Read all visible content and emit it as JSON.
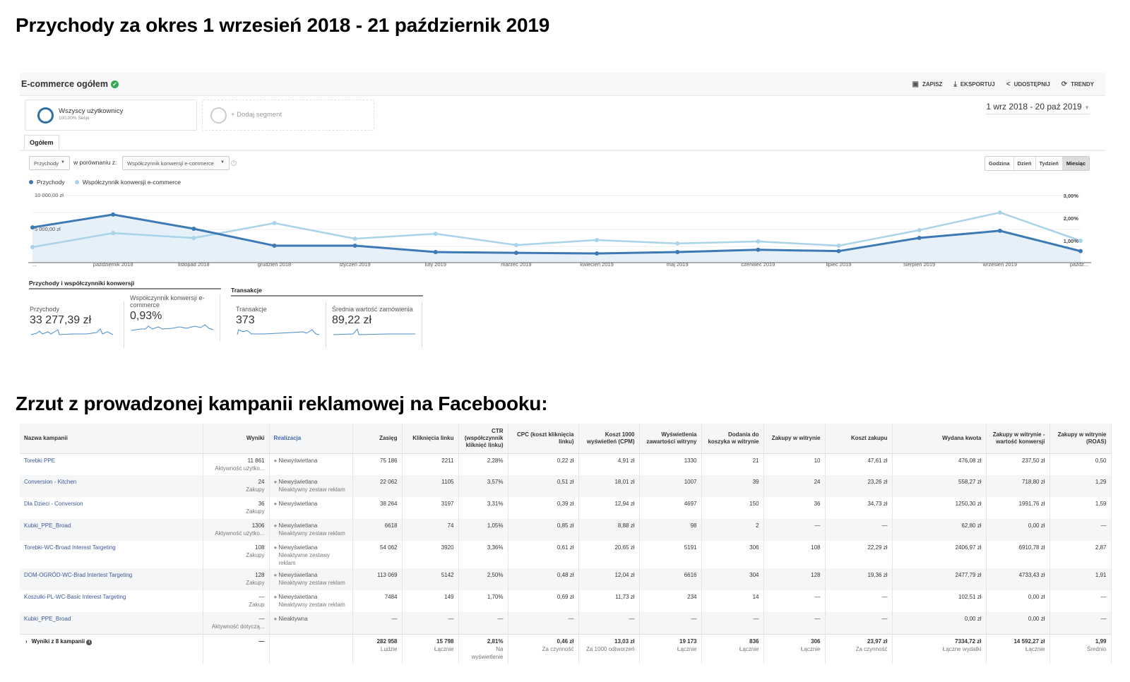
{
  "heading1": "Przychody za okres 1 wrzesień 2018 - 21 październik 2019",
  "heading2": "Zrzut z prowadzonej kampanii reklamowej na Facebooku:",
  "ga": {
    "title": "E-commerce ogółem",
    "toolbar": {
      "save": "ZAPISZ",
      "export": "EKSPORTUJ",
      "share": "UDOSTĘPNIJ",
      "trends": "TRENDY"
    },
    "segment": {
      "name": "Wszyscy użytkownicy",
      "sub": "100,00% Sesje"
    },
    "add_segment": "+ Dodaj segment",
    "date_range": "1 wrz 2018 - 20 paź 2019",
    "tab": "Ogółem",
    "metric_select": "Przychody",
    "compare_label": "w porównaniu z:",
    "compare_select": "Współczynnik konwersji e-commerce",
    "granularity": [
      "Godzina",
      "Dzień",
      "Tydzień",
      "Miesiąc"
    ],
    "granularity_selected": "Miesiąc",
    "summary": {
      "group1": "Przychody i współczynniki konwersji",
      "group2": "Transakcje",
      "metrics": [
        {
          "label": "Przychody",
          "value": "33 277,39 zł"
        },
        {
          "label": "Współczynnik konwersji e-commerce",
          "value": "0,93%"
        },
        {
          "label": "Transakcje",
          "value": "373"
        },
        {
          "label": "Średnia wartość zamówienia",
          "value": "89,22 zł"
        }
      ]
    }
  },
  "chart_data": {
    "type": "line",
    "x": [
      "...",
      "październik 2018",
      "listopad 2018",
      "grudzień 2018",
      "styczeń 2019",
      "luty 2019",
      "marzec 2019",
      "kwiecień 2019",
      "maj 2019",
      "czerwiec 2019",
      "lipiec 2019",
      "sierpień 2019",
      "wrzesień 2019",
      "paźdz..."
    ],
    "series": [
      {
        "name": "Przychody",
        "axis": "left",
        "color": "#3d7ab5",
        "values": [
          5200,
          7100,
          5000,
          2500,
          2500,
          1560,
          1450,
          1350,
          1560,
          1900,
          1700,
          3650,
          4700,
          1700
        ]
      },
      {
        "name": "Współczynnik konwersji e-commerce",
        "axis": "right",
        "color": "#a8d3e8",
        "values": [
          0.72,
          1.34,
          1.12,
          1.78,
          1.09,
          1.31,
          0.81,
          1.03,
          0.88,
          0.97,
          0.78,
          1.47,
          2.25,
          1.0
        ]
      }
    ],
    "left_ticks": [
      "10 000,00 zł",
      "5 000,00 zł"
    ],
    "left_tick_values": [
      10000,
      5000
    ],
    "right_ticks": [
      "3,00%",
      "2,00%",
      "1,00%"
    ],
    "right_tick_values": [
      3,
      2,
      1
    ],
    "ylim_left": [
      0,
      10000
    ],
    "ylim_right": [
      0,
      3
    ],
    "legend": "top-left",
    "grid": true
  },
  "fb": {
    "columns": [
      "Nazwa kampanii",
      "Wyniki",
      "Realizacja",
      "Zasięg",
      "Kliknięcia linku",
      "CTR (współczynnik kliknięć linku)",
      "CPC (koszt kliknięcia linku)",
      "Koszt 1000 wyświetleń (CPM)",
      "Wyświetlenia zawartości witryny",
      "Dodania do koszyka w witrynie",
      "Zakupy w witrynie",
      "Koszt zakupu",
      "Wydana kwota",
      "Zakupy w witrynie - wartość konwersji",
      "Zakupy w witrynie (ROAS)"
    ],
    "rows": [
      {
        "name": "Torebki PPE",
        "wyniki": "11 861",
        "wyniki_sub": "Aktywność użytko...",
        "status": "Niewyświetlana",
        "status_sub": "",
        "cells": [
          "75 186",
          "2211",
          "2,28%",
          "0,22 zł",
          "4,91 zł",
          "1330",
          "21",
          "10",
          "47,61 zł",
          "476,08 zł",
          "237,50 zł",
          "0,50"
        ]
      },
      {
        "name": "Conversion - Kitchen",
        "wyniki": "24",
        "wyniki_sub": "Zakupy",
        "status": "Niewyświetlana",
        "status_sub": "Nieaktywny zestaw reklam",
        "cells": [
          "22 062",
          "1105",
          "3,57%",
          "0,51 zł",
          "18,01 zł",
          "1007",
          "39",
          "24",
          "23,26 zł",
          "558,27 zł",
          "718,80 zł",
          "1,29"
        ]
      },
      {
        "name": "Dla Dzieci - Conversion",
        "wyniki": "36",
        "wyniki_sub": "Zakupy",
        "status": "Niewyświetlana",
        "status_sub": "",
        "cells": [
          "38 264",
          "3197",
          "3,31%",
          "0,39 zł",
          "12,94 zł",
          "4697",
          "150",
          "36",
          "34,73 zł",
          "1250,30 zł",
          "1991,76 zł",
          "1,59"
        ]
      },
      {
        "name": "Kubki_PPE_Broad",
        "wyniki": "1306",
        "wyniki_sub": "Aktywność użytko...",
        "status": "Niewyświetlana",
        "status_sub": "Nieaktywny zestaw reklam",
        "cells": [
          "6618",
          "74",
          "1,05%",
          "0,85 zł",
          "8,88 zł",
          "98",
          "2",
          "—",
          "—",
          "62,80 zł",
          "0,00 zł",
          "—"
        ]
      },
      {
        "name": "Torebki-WC-Broad Interest Targeting",
        "wyniki": "108",
        "wyniki_sub": "Zakupy",
        "status": "Niewyświetlana",
        "status_sub": "Nieaktywne zestawy reklam",
        "cells": [
          "54 062",
          "3920",
          "3,36%",
          "0,61 zł",
          "20,65 zł",
          "5191",
          "306",
          "108",
          "22,29 zł",
          "2406,97 zł",
          "6910,78 zł",
          "2,87"
        ]
      },
      {
        "name": "DOM-OGRÓD-WC-Brad Intertest Targeting",
        "wyniki": "128",
        "wyniki_sub": "Zakupy",
        "status": "Niewyświetlana",
        "status_sub": "Nieaktywny zestaw reklam",
        "cells": [
          "113 069",
          "5142",
          "2,50%",
          "0,48 zł",
          "12,04 zł",
          "6616",
          "304",
          "128",
          "19,36 zł",
          "2477,79 zł",
          "4733,43 zł",
          "1,91"
        ]
      },
      {
        "name": "Koszulki-PL-WC-Basic Interest Targeting",
        "wyniki": "—",
        "wyniki_sub": "Zakup",
        "status": "Niewyświetlana",
        "status_sub": "Nieaktywny zestaw reklam",
        "cells": [
          "7484",
          "149",
          "1,70%",
          "0,69 zł",
          "11,73 zł",
          "234",
          "14",
          "—",
          "—",
          "102,51 zł",
          "0,00 zł",
          "—"
        ]
      },
      {
        "name": "Kubki_PPE_Broad",
        "wyniki": "—",
        "wyniki_sub": "Aktywność dotyczą...",
        "status": "Nieaktywna",
        "status_sub": "",
        "cells": [
          "—",
          "—",
          "—",
          "—",
          "—",
          "—",
          "—",
          "—",
          "—",
          "0,00 zł",
          "0,00 zł",
          "—"
        ]
      }
    ],
    "footer": {
      "label": "Wyniki z 8 kampanii",
      "wyniki": "—",
      "cells": [
        {
          "v": "282 958",
          "s": "Ludzie"
        },
        {
          "v": "15 798",
          "s": "Łącznie"
        },
        {
          "v": "2,81%",
          "s": "Na wyświetlenie"
        },
        {
          "v": "0,46 zł",
          "s": "Za czynność"
        },
        {
          "v": "13,03 zł",
          "s": "Za 1000 odtworzeń"
        },
        {
          "v": "19 173",
          "s": "Łącznie"
        },
        {
          "v": "836",
          "s": "Łącznie"
        },
        {
          "v": "306",
          "s": "Łącznie"
        },
        {
          "v": "23,97 zł",
          "s": "Za czynność"
        },
        {
          "v": "7334,72 zł",
          "s": "Łączne wydatki"
        },
        {
          "v": "14 592,27 zł",
          "s": "Łącznie"
        },
        {
          "v": "1,99",
          "s": "Średnio"
        }
      ]
    }
  }
}
